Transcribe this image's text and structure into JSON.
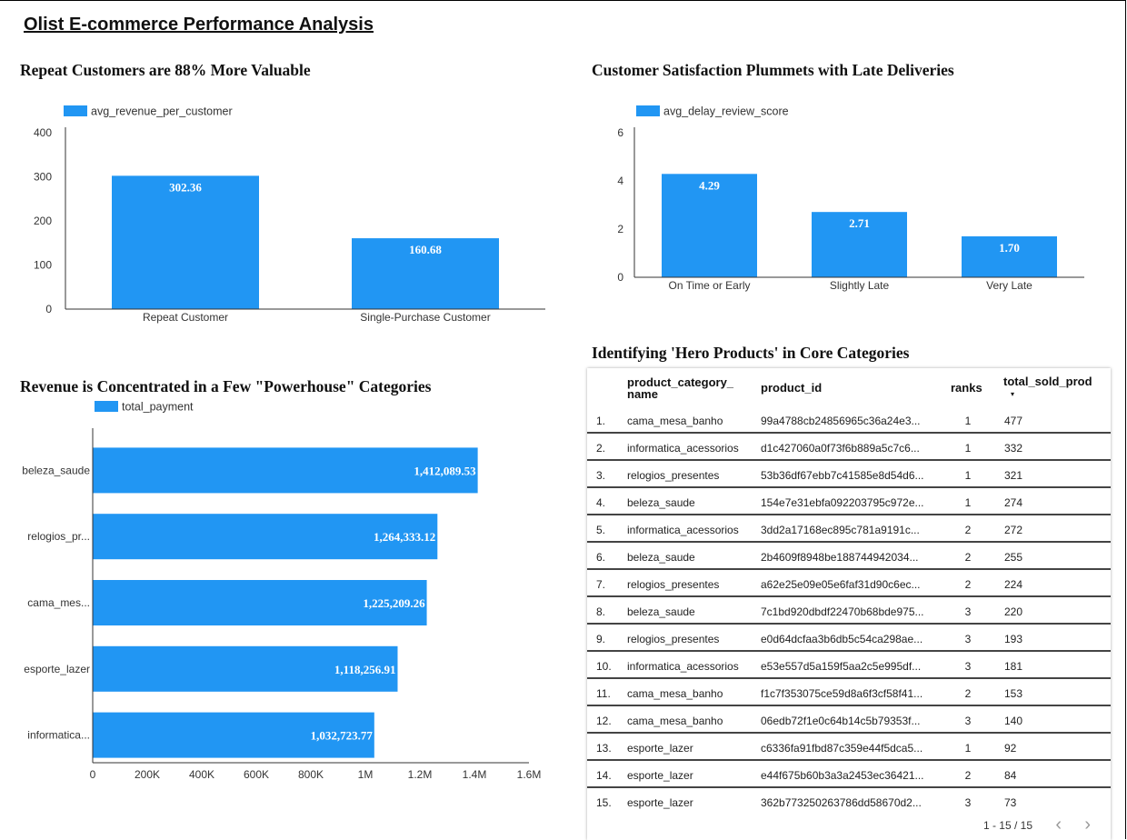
{
  "report": {
    "title": "Olist E-commerce Performance Analysis"
  },
  "colors": {
    "bar": "#2196f3",
    "axis": "#333333"
  },
  "chart_data": [
    {
      "id": "repeat",
      "type": "bar",
      "title": "Repeat Customers are 88% More Valuable",
      "legend": "avg_revenue_per_customer",
      "categories": [
        "Repeat Customer",
        "Single-Purchase Customer"
      ],
      "values": [
        302.36,
        160.68
      ],
      "labels": [
        "302.36",
        "160.68"
      ],
      "yticks": [
        "0",
        "100",
        "200",
        "300",
        "400"
      ],
      "ylim": [
        0,
        400
      ]
    },
    {
      "id": "delay",
      "type": "bar",
      "title": "Customer Satisfaction Plummets with Late Deliveries",
      "legend": "avg_delay_review_score",
      "categories": [
        "On Time or Early",
        "Slightly Late",
        "Very Late"
      ],
      "values": [
        4.29,
        2.71,
        1.7
      ],
      "labels": [
        "4.29",
        "2.71",
        "1.70"
      ],
      "yticks": [
        "0",
        "2",
        "4",
        "6"
      ],
      "ylim": [
        0,
        6
      ]
    },
    {
      "id": "revenue",
      "type": "bar",
      "orientation": "horizontal",
      "title": "Revenue is Concentrated in a Few \"Powerhouse\" Categories",
      "legend": "total_payment",
      "categories": [
        "beleza_saude",
        "relogios_pr...",
        "cama_mes...",
        "esporte_lazer",
        "informatica..."
      ],
      "values": [
        1412089.53,
        1264333.12,
        1225209.26,
        1118256.91,
        1032723.77
      ],
      "labels": [
        "1,412,089.53",
        "1,264,333.12",
        "1,225,209.26",
        "1,118,256.91",
        "1,032,723.77"
      ],
      "xticks": [
        "0",
        "200K",
        "400K",
        "600K",
        "800K",
        "1M",
        "1.2M",
        "1.4M",
        "1.6M"
      ],
      "xlim": [
        0,
        1600000
      ]
    }
  ],
  "table": {
    "title": "Identifying 'Hero Products' in Core Categories",
    "headers": {
      "category_line1": "product_category_",
      "category_line2": "name",
      "product": "product_id",
      "ranks": "ranks",
      "sold": "total_sold_prod"
    },
    "sort_icon": "▾",
    "rows": [
      {
        "idx": "1.",
        "cat": "cama_mesa_banho",
        "prod": "99a4788cb24856965c36a24e3...",
        "rank": "1",
        "sold": "477"
      },
      {
        "idx": "2.",
        "cat": "informatica_acessorios",
        "prod": "d1c427060a0f73f6b889a5c7c6...",
        "rank": "1",
        "sold": "332"
      },
      {
        "idx": "3.",
        "cat": "relogios_presentes",
        "prod": "53b36df67ebb7c41585e8d54d6...",
        "rank": "1",
        "sold": "321"
      },
      {
        "idx": "4.",
        "cat": "beleza_saude",
        "prod": "154e7e31ebfa092203795c972e...",
        "rank": "1",
        "sold": "274"
      },
      {
        "idx": "5.",
        "cat": "informatica_acessorios",
        "prod": "3dd2a17168ec895c781a9191c...",
        "rank": "2",
        "sold": "272"
      },
      {
        "idx": "6.",
        "cat": "beleza_saude",
        "prod": "2b4609f8948be188744942034...",
        "rank": "2",
        "sold": "255"
      },
      {
        "idx": "7.",
        "cat": "relogios_presentes",
        "prod": "a62e25e09e05e6faf31d90c6ec...",
        "rank": "2",
        "sold": "224"
      },
      {
        "idx": "8.",
        "cat": "beleza_saude",
        "prod": "7c1bd920dbdf22470b68bde975...",
        "rank": "3",
        "sold": "220"
      },
      {
        "idx": "9.",
        "cat": "relogios_presentes",
        "prod": "e0d64dcfaa3b6db5c54ca298ae...",
        "rank": "3",
        "sold": "193"
      },
      {
        "idx": "10.",
        "cat": "informatica_acessorios",
        "prod": "e53e557d5a159f5aa2c5e995df...",
        "rank": "3",
        "sold": "181"
      },
      {
        "idx": "11.",
        "cat": "cama_mesa_banho",
        "prod": "f1c7f353075ce59d8a6f3cf58f41...",
        "rank": "2",
        "sold": "153"
      },
      {
        "idx": "12.",
        "cat": "cama_mesa_banho",
        "prod": "06edb72f1e0c64b14c5b79353f...",
        "rank": "3",
        "sold": "140"
      },
      {
        "idx": "13.",
        "cat": "esporte_lazer",
        "prod": "c6336fa91fbd87c359e44f5dca5...",
        "rank": "1",
        "sold": "92"
      },
      {
        "idx": "14.",
        "cat": "esporte_lazer",
        "prod": "e44f675b60b3a3a2453ec36421...",
        "rank": "2",
        "sold": "84"
      },
      {
        "idx": "15.",
        "cat": "esporte_lazer",
        "prod": "362b773250263786dd58670d2...",
        "rank": "3",
        "sold": "73"
      }
    ],
    "pagination": {
      "text": "1 - 15 / 15",
      "prev_icon": "‹",
      "next_icon": "›"
    }
  }
}
